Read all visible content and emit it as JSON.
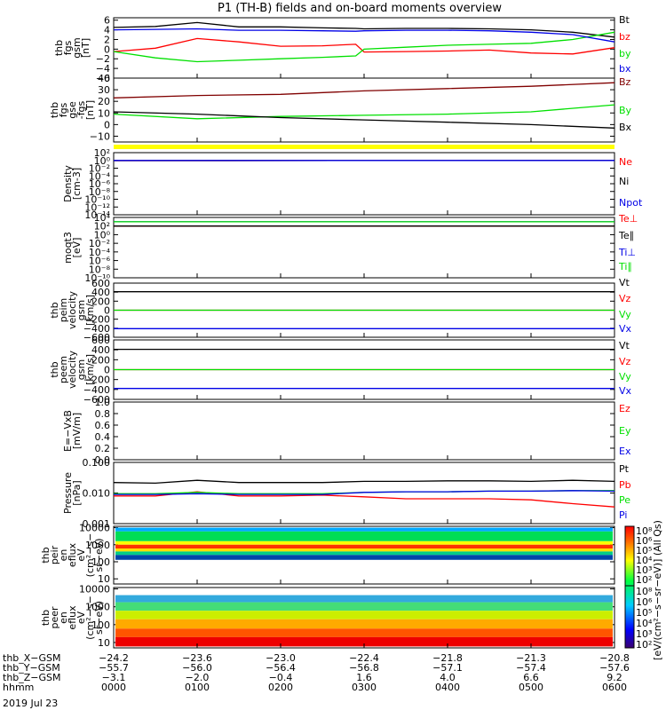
{
  "title": "P1 (TH-B) fields and on-board moments overview",
  "date": "2019 Jul 23",
  "colors": {
    "black": "#000000",
    "red": "#ff0000",
    "green": "#00e000",
    "blue": "#0000e6",
    "yellow": "#ffff00",
    "maroon": "#800000"
  },
  "chart_data": [
    {
      "type": "line",
      "panel": "fgs_gsm",
      "ylabel": [
        "thb",
        "fgs",
        "gsm",
        "[nT]"
      ],
      "ylim": [
        -6,
        6.5
      ],
      "yticks": [
        "6",
        "4",
        "2",
        "0",
        "−2",
        "−4",
        "−6"
      ],
      "ytick_values": [
        6,
        4,
        2,
        0,
        -2,
        -4,
        -6
      ],
      "series": [
        {
          "name": "Bt",
          "color": "#000000",
          "x": [
            0,
            0.5,
            1.0,
            1.5,
            2.0,
            2.5,
            2.9,
            3.0,
            3.5,
            4.0,
            4.5,
            5.0,
            5.5,
            6.0
          ],
          "values": [
            4.5,
            4.7,
            5.5,
            4.6,
            4.6,
            4.4,
            4.3,
            4.2,
            4.3,
            4.3,
            4.2,
            4.0,
            3.5,
            2.5
          ]
        },
        {
          "name": "bz",
          "color": "#ff0000",
          "x": [
            0,
            0.5,
            1.0,
            1.5,
            2.0,
            2.5,
            2.9,
            3.0,
            3.5,
            4.0,
            4.5,
            5.0,
            5.5,
            6.0
          ],
          "values": [
            -0.5,
            0.2,
            2.2,
            1.5,
            0.6,
            0.7,
            1.0,
            -0.6,
            -0.5,
            -0.4,
            -0.2,
            -0.8,
            -1.0,
            0.3
          ]
        },
        {
          "name": "by",
          "color": "#00e000",
          "x": [
            0,
            0.5,
            1.0,
            1.5,
            2.0,
            2.5,
            2.9,
            3.0,
            3.5,
            4.0,
            4.5,
            5.0,
            5.5,
            6.0
          ],
          "values": [
            -0.5,
            -1.8,
            -2.6,
            -2.3,
            -2.0,
            -1.7,
            -1.4,
            0.0,
            0.4,
            0.8,
            1.0,
            1.2,
            2.0,
            3.5
          ]
        },
        {
          "name": "bx",
          "color": "#0000e6",
          "x": [
            0,
            0.5,
            1.0,
            1.5,
            2.0,
            2.5,
            2.9,
            3.0,
            3.5,
            4.0,
            4.5,
            5.0,
            5.5,
            6.0
          ],
          "values": [
            4.0,
            4.1,
            4.2,
            3.9,
            3.9,
            3.8,
            3.7,
            3.8,
            3.9,
            3.9,
            3.8,
            3.5,
            3.0,
            1.5
          ]
        }
      ]
    },
    {
      "type": "line",
      "panel": "fgs_gse",
      "ylabel": [
        "thb",
        "fgs",
        "gse",
        "-fgs",
        "[nT]"
      ],
      "ylim": [
        -15,
        40
      ],
      "yticks": [
        "40",
        "30",
        "20",
        "10",
        "0",
        "−10"
      ],
      "ytick_values": [
        40,
        30,
        20,
        10,
        0,
        -10
      ],
      "series": [
        {
          "name": "Bz",
          "color": "#800000",
          "x": [
            0,
            1,
            2,
            3,
            4,
            5,
            6
          ],
          "values": [
            23,
            25,
            26,
            29,
            31,
            33,
            36
          ]
        },
        {
          "name": "By",
          "color": "#00e000",
          "x": [
            0,
            1,
            2,
            3,
            4,
            5,
            6
          ],
          "values": [
            9,
            5,
            7,
            8,
            9,
            11,
            17
          ]
        },
        {
          "name": "Bx",
          "color": "#000000",
          "x": [
            0,
            1,
            2,
            3,
            4,
            5,
            6
          ],
          "values": [
            11,
            9,
            6,
            4,
            2,
            0,
            -3
          ]
        }
      ]
    },
    {
      "type": "line",
      "panel": "density",
      "ylabel": [
        "Density",
        "[cm-3]"
      ],
      "yticks": [
        "10²",
        "10⁰",
        "10⁻²",
        "10⁻⁴",
        "10⁻⁶",
        "10⁻⁸",
        "10⁻¹⁰",
        "10⁻¹²",
        "10⁻¹⁴"
      ],
      "series": [
        {
          "name": "Ne",
          "color": "#ff0000",
          "x": [
            0,
            6
          ],
          "values": [
            0.9,
            1.0
          ]
        },
        {
          "name": "Ni",
          "color": "#000000",
          "x": [
            0,
            6
          ],
          "values": [
            0.9,
            1.0
          ]
        },
        {
          "name": "Npot",
          "color": "#0000e6",
          "x": [
            0,
            6
          ],
          "values": [
            1.0,
            1.0
          ]
        }
      ]
    },
    {
      "type": "line",
      "panel": "temperature",
      "ylabel": [
        "moqt3",
        "[eV]"
      ],
      "yticks": [
        "10⁴",
        "10²",
        "10⁰",
        "10⁻²",
        "10⁻⁴",
        "10⁻⁶",
        "10⁻⁸",
        "10⁻¹⁰"
      ],
      "series": [
        {
          "name": "Te⊥",
          "color": "#ff0000",
          "x": [
            0,
            6
          ],
          "values": [
            100,
            100
          ]
        },
        {
          "name": "Te∥",
          "color": "#000000",
          "x": [
            0,
            6
          ],
          "values": [
            100,
            100
          ]
        },
        {
          "name": "Ti⊥",
          "color": "#0000e6",
          "x": [
            0,
            6
          ],
          "values": [
            1000,
            1000
          ]
        },
        {
          "name": "Ti∥",
          "color": "#00e000",
          "x": [
            0,
            6
          ],
          "values": [
            1000,
            1000
          ]
        }
      ]
    },
    {
      "type": "line",
      "panel": "peim_velocity",
      "ylabel": [
        "thb",
        "peim",
        "velocity",
        "gsm",
        "[km/s]"
      ],
      "ylim": [
        -600,
        600
      ],
      "yticks": [
        "600",
        "400",
        "200",
        "0",
        "−200",
        "−400",
        "−600"
      ],
      "ytick_values": [
        600,
        400,
        200,
        0,
        -200,
        -400,
        -600
      ],
      "series": [
        {
          "name": "Vt",
          "color": "#000000",
          "x": [
            0,
            6
          ],
          "values": [
            410,
            410
          ]
        },
        {
          "name": "Vz",
          "color": "#ff0000",
          "x": [
            0,
            6
          ],
          "values": [
            0,
            0
          ]
        },
        {
          "name": "Vy",
          "color": "#00e000",
          "x": [
            0,
            6
          ],
          "values": [
            0,
            0
          ]
        },
        {
          "name": "Vx",
          "color": "#0000e6",
          "x": [
            0,
            6
          ],
          "values": [
            -410,
            -410
          ]
        }
      ]
    },
    {
      "type": "line",
      "panel": "peem_velocity",
      "ylabel": [
        "thb",
        "peem",
        "velocity",
        "gsm",
        "[km/s]"
      ],
      "ylim": [
        -600,
        600
      ],
      "yticks": [
        "600",
        "400",
        "200",
        "0",
        "−200",
        "−400",
        "−600"
      ],
      "ytick_values": [
        600,
        400,
        200,
        0,
        -200,
        -400,
        -600
      ],
      "series": [
        {
          "name": "Vt",
          "color": "#000000",
          "x": [
            0,
            6
          ],
          "values": [
            410,
            410
          ]
        },
        {
          "name": "Vz",
          "color": "#ff0000",
          "x": [
            0,
            6
          ],
          "values": [
            0,
            0
          ]
        },
        {
          "name": "Vy",
          "color": "#00e000",
          "x": [
            0,
            6
          ],
          "values": [
            0,
            0
          ]
        },
        {
          "name": "Vx",
          "color": "#0000e6",
          "x": [
            0,
            6
          ],
          "values": [
            -380,
            -380
          ]
        }
      ]
    },
    {
      "type": "line",
      "panel": "efield",
      "ylabel": [
        "E=−VxB",
        "[mV/m]"
      ],
      "ylim": [
        0,
        1.0
      ],
      "yticks": [
        "1.0",
        "0.8",
        "0.6",
        "0.4",
        "0.2",
        "0.0"
      ],
      "ytick_values": [
        1.0,
        0.8,
        0.6,
        0.4,
        0.2,
        0.0
      ],
      "series": [
        {
          "name": "Ez",
          "color": "#ff0000",
          "x": [],
          "values": []
        },
        {
          "name": "Ey",
          "color": "#00e000",
          "x": [],
          "values": []
        },
        {
          "name": "Ex",
          "color": "#0000e6",
          "x": [],
          "values": []
        }
      ]
    },
    {
      "type": "line",
      "panel": "pressure",
      "ylabel": [
        "Pressure",
        "[nPa]"
      ],
      "log": true,
      "ylim": [
        0.001,
        0.1
      ],
      "yticks": [
        "0.100",
        "0.010",
        "0.001"
      ],
      "ytick_values": [
        0.1,
        0.01,
        0.001
      ],
      "series": [
        {
          "name": "Pt",
          "color": "#000000",
          "x": [
            0,
            0.5,
            1.0,
            1.5,
            2.0,
            2.5,
            3.0,
            3.5,
            4.0,
            4.5,
            5.0,
            5.5,
            6.0
          ],
          "values": [
            0.022,
            0.021,
            0.026,
            0.022,
            0.022,
            0.022,
            0.024,
            0.024,
            0.025,
            0.025,
            0.024,
            0.026,
            0.024
          ]
        },
        {
          "name": "Pb",
          "color": "#ff0000",
          "x": [
            0,
            0.5,
            1.0,
            1.5,
            2.0,
            2.5,
            3.0,
            3.5,
            4.0,
            4.5,
            5.0,
            5.5,
            6.0
          ],
          "values": [
            0.008,
            0.008,
            0.011,
            0.008,
            0.008,
            0.0085,
            0.0075,
            0.0065,
            0.0065,
            0.0065,
            0.006,
            0.0045,
            0.0035
          ]
        },
        {
          "name": "Pe",
          "color": "#00e000",
          "x": [
            0,
            0.5,
            1.0,
            1.5,
            2.0,
            2.5,
            3.0,
            3.5,
            4.0,
            4.5,
            5.0,
            5.5,
            6.0
          ],
          "values": [
            0.0095,
            0.0095,
            0.0105,
            0.0095,
            0.0095,
            0.0095,
            0.0105,
            0.011,
            0.011,
            0.0115,
            0.0115,
            0.012,
            0.012
          ]
        },
        {
          "name": "Pi",
          "color": "#0000e6",
          "x": [
            0,
            0.5,
            1.0,
            1.5,
            2.0,
            2.5,
            3.0,
            3.5,
            4.0,
            4.5,
            5.0,
            5.5,
            6.0
          ],
          "values": [
            0.009,
            0.009,
            0.0095,
            0.009,
            0.009,
            0.009,
            0.0105,
            0.011,
            0.011,
            0.0115,
            0.0115,
            0.012,
            0.0115
          ]
        }
      ]
    },
    {
      "type": "heatmap",
      "panel": "peir_en_eflux",
      "ylabel": [
        "thb",
        "peir",
        "en",
        "eflux",
        "eV",
        "(cm²−s−",
        "sr−eV)"
      ],
      "log": true,
      "ylim": [
        5,
        12000
      ],
      "yticks": [
        "10000",
        "1000",
        "100",
        "10"
      ],
      "ytick_values": [
        10000,
        1000,
        100,
        10
      ],
      "energy_bands": [
        {
          "emin": 6000,
          "emax": 10000,
          "color": "#00aaff"
        },
        {
          "emin": 1600,
          "emax": 6000,
          "color": "#00dd55"
        },
        {
          "emin": 1000,
          "emax": 1600,
          "color": "#ffff00"
        },
        {
          "emin": 600,
          "emax": 1000,
          "color": "#ff3300"
        },
        {
          "emin": 400,
          "emax": 600,
          "color": "#ffdd00"
        },
        {
          "emin": 250,
          "emax": 400,
          "color": "#00cc88"
        },
        {
          "emin": 130,
          "emax": 250,
          "color": "#0044aa"
        }
      ]
    },
    {
      "type": "heatmap",
      "panel": "peer_en_eflux",
      "ylabel": [
        "thb",
        "peer",
        "en",
        "eflux",
        "eV",
        "(cm²−s−",
        "sr−eV)"
      ],
      "log": true,
      "ylim": [
        5,
        12000
      ],
      "yticks": [
        "10000",
        "1000",
        "100",
        "10"
      ],
      "ytick_values": [
        10000,
        1000,
        100,
        10
      ],
      "energy_bands": [
        {
          "emin": 1800,
          "emax": 4500,
          "color": "#33aadd"
        },
        {
          "emin": 600,
          "emax": 1800,
          "color": "#44dd77"
        },
        {
          "emin": 200,
          "emax": 600,
          "color": "#ccee00"
        },
        {
          "emin": 60,
          "emax": 200,
          "color": "#ffaa00"
        },
        {
          "emin": 20,
          "emax": 60,
          "color": "#ff5500"
        },
        {
          "emin": 6,
          "emax": 20,
          "color": "#ee0000"
        }
      ]
    }
  ],
  "colorbar": {
    "label": "[eV/(cm²−s−sr−eV)]  (All Qs)",
    "ticks_top": [
      "10⁸",
      "10⁶",
      "10⁵",
      "10⁴",
      "10³",
      "10²"
    ],
    "ticks_bottom": [
      "10⁸",
      "10⁶",
      "10⁵",
      "10⁴",
      "10³",
      "10²"
    ]
  },
  "axis_footer": {
    "row_labels": [
      "thb_X−GSM",
      "thb_Y−GSM",
      "thb_Z−GSM",
      "hhmm"
    ],
    "columns": [
      [
        "−24.2",
        "−55.7",
        "−3.1",
        "0000"
      ],
      [
        "−23.6",
        "−56.0",
        "−2.0",
        "0100"
      ],
      [
        "−23.0",
        "−56.4",
        "−0.4",
        "0200"
      ],
      [
        "−22.4",
        "−56.8",
        "1.6",
        "0300"
      ],
      [
        "−21.8",
        "−57.1",
        "4.0",
        "0400"
      ],
      [
        "−21.3",
        "−57.4",
        "6.6",
        "0500"
      ],
      [
        "−20.8",
        "−57.6",
        "9.2",
        "0600"
      ]
    ]
  }
}
